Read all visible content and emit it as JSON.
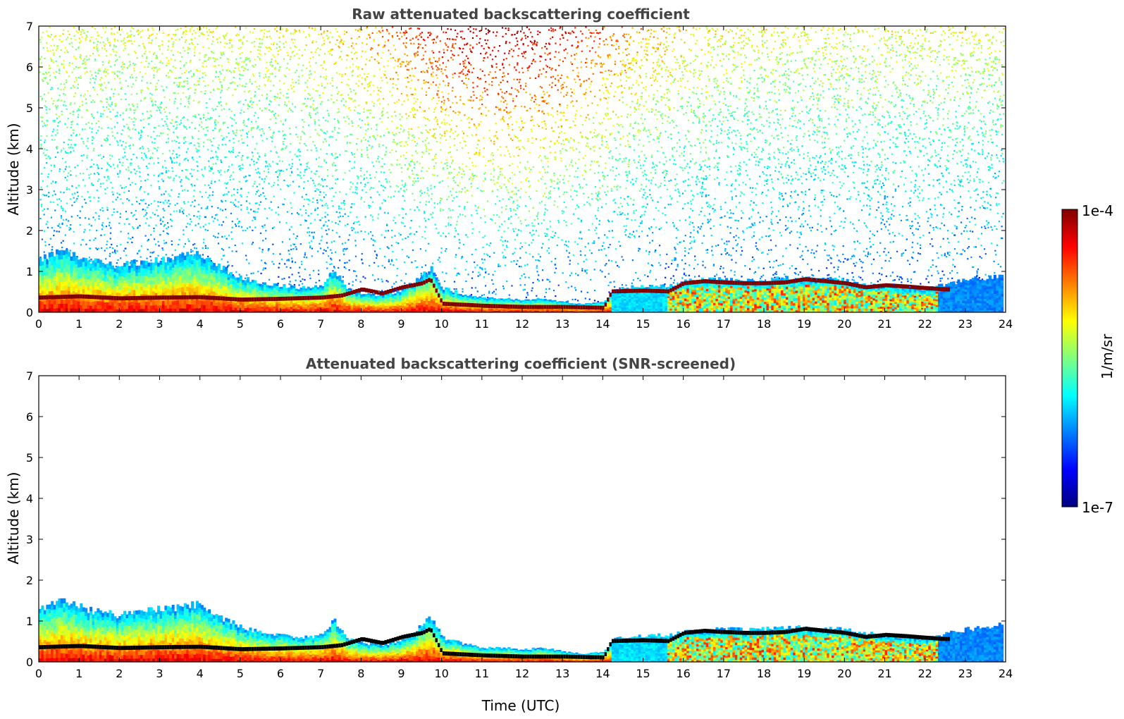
{
  "chart_data": [
    {
      "type": "heatmap",
      "title": "Raw attenuated backscattering coefficient",
      "xlabel": "",
      "ylabel": "Altitude (km)",
      "xlim": [
        0,
        24
      ],
      "ylim": [
        0,
        7
      ],
      "x_ticks": [
        "0",
        "1",
        "2",
        "3",
        "4",
        "5",
        "6",
        "7",
        "8",
        "9",
        "10",
        "11",
        "12",
        "13",
        "14",
        "15",
        "16",
        "17",
        "18",
        "19",
        "20",
        "21",
        "22",
        "23",
        "24"
      ],
      "y_ticks": [
        "0",
        "1",
        "2",
        "3",
        "4",
        "5",
        "6",
        "7"
      ],
      "screened": false,
      "boundary_layer_top_km": [
        [
          0,
          1.3
        ],
        [
          0.5,
          1.5
        ],
        [
          1,
          1.35
        ],
        [
          1.5,
          1.2
        ],
        [
          2,
          1.15
        ],
        [
          2.5,
          1.25
        ],
        [
          3,
          1.3
        ],
        [
          3.5,
          1.35
        ],
        [
          4,
          1.45
        ],
        [
          4.5,
          1.1
        ],
        [
          5,
          0.85
        ],
        [
          5.5,
          0.72
        ],
        [
          6,
          0.65
        ],
        [
          6.5,
          0.6
        ],
        [
          7,
          0.65
        ],
        [
          7.3,
          1.05
        ],
        [
          7.6,
          0.6
        ],
        [
          8,
          0.45
        ],
        [
          8.5,
          0.4
        ],
        [
          9,
          0.55
        ],
        [
          9.5,
          0.9
        ],
        [
          9.7,
          1.1
        ],
        [
          10,
          0.6
        ],
        [
          10.5,
          0.45
        ],
        [
          11,
          0.35
        ],
        [
          11.5,
          0.35
        ],
        [
          12,
          0.3
        ],
        [
          12.5,
          0.35
        ],
        [
          13,
          0.25
        ],
        [
          13.5,
          0.2
        ],
        [
          14,
          0.25
        ],
        [
          14.3,
          0.6
        ],
        [
          15,
          0.65
        ],
        [
          15.6,
          0.65
        ],
        [
          16,
          0.75
        ],
        [
          16.5,
          0.8
        ],
        [
          17,
          0.8
        ],
        [
          17.5,
          0.78
        ],
        [
          18,
          0.8
        ],
        [
          18.5,
          0.85
        ],
        [
          19,
          0.85
        ],
        [
          19.5,
          0.82
        ],
        [
          20,
          0.78
        ],
        [
          20.5,
          0.7
        ],
        [
          21,
          0.65
        ],
        [
          21.5,
          0.62
        ],
        [
          22,
          0.55
        ],
        [
          22.5,
          0.7
        ],
        [
          23,
          0.8
        ],
        [
          23.5,
          0.85
        ],
        [
          23.9,
          0.9
        ]
      ],
      "residual_layer_km": [
        [
          0,
          0.35
        ],
        [
          1,
          0.38
        ],
        [
          2,
          0.33
        ],
        [
          3,
          0.35
        ],
        [
          4,
          0.36
        ],
        [
          5,
          0.3
        ],
        [
          6,
          0.32
        ],
        [
          7,
          0.35
        ],
        [
          7.5,
          0.4
        ],
        [
          8,
          0.55
        ],
        [
          8.5,
          0.45
        ],
        [
          9,
          0.6
        ],
        [
          9.5,
          0.7
        ],
        [
          9.7,
          0.8
        ],
        [
          10,
          0.2
        ],
        [
          11,
          0.15
        ],
        [
          12,
          0.12
        ],
        [
          13,
          0.12
        ],
        [
          14,
          0.1
        ],
        [
          14.2,
          0.5
        ],
        [
          15,
          0.52
        ],
        [
          15.6,
          0.5
        ],
        [
          16,
          0.7
        ],
        [
          16.5,
          0.75
        ],
        [
          17,
          0.72
        ],
        [
          17.5,
          0.7
        ],
        [
          18,
          0.7
        ],
        [
          18.5,
          0.72
        ],
        [
          19,
          0.8
        ],
        [
          19.5,
          0.75
        ],
        [
          20,
          0.7
        ],
        [
          20.5,
          0.6
        ],
        [
          21,
          0.65
        ],
        [
          21.5,
          0.62
        ],
        [
          22,
          0.58
        ],
        [
          22.5,
          0.55
        ]
      ]
    },
    {
      "type": "heatmap",
      "title": "Attenuated backscattering coefficient (SNR-screened)",
      "xlabel": "Time (UTC)",
      "ylabel": "Altitude (km)",
      "xlim": [
        0,
        24
      ],
      "ylim": [
        0,
        7
      ],
      "x_ticks": [
        "0",
        "1",
        "2",
        "3",
        "4",
        "5",
        "6",
        "7",
        "8",
        "9",
        "10",
        "11",
        "12",
        "13",
        "14",
        "15",
        "16",
        "17",
        "18",
        "19",
        "20",
        "21",
        "22",
        "23",
        "24"
      ],
      "y_ticks": [
        "0",
        "1",
        "2",
        "3",
        "4",
        "5",
        "6",
        "7"
      ],
      "screened": true,
      "boundary_layer_top_km": [
        [
          0,
          1.3
        ],
        [
          0.5,
          1.5
        ],
        [
          1,
          1.35
        ],
        [
          1.5,
          1.2
        ],
        [
          2,
          1.15
        ],
        [
          2.5,
          1.25
        ],
        [
          3,
          1.3
        ],
        [
          3.5,
          1.35
        ],
        [
          4,
          1.45
        ],
        [
          4.5,
          1.1
        ],
        [
          5,
          0.85
        ],
        [
          5.5,
          0.72
        ],
        [
          6,
          0.65
        ],
        [
          6.5,
          0.6
        ],
        [
          7,
          0.65
        ],
        [
          7.3,
          1.05
        ],
        [
          7.6,
          0.6
        ],
        [
          8,
          0.45
        ],
        [
          8.5,
          0.4
        ],
        [
          9,
          0.55
        ],
        [
          9.5,
          0.9
        ],
        [
          9.7,
          1.1
        ],
        [
          10,
          0.6
        ],
        [
          10.5,
          0.45
        ],
        [
          11,
          0.35
        ],
        [
          11.5,
          0.35
        ],
        [
          12,
          0.3
        ],
        [
          12.5,
          0.35
        ],
        [
          13,
          0.25
        ],
        [
          13.5,
          0.2
        ],
        [
          14,
          0.25
        ],
        [
          14.3,
          0.6
        ],
        [
          15,
          0.65
        ],
        [
          15.6,
          0.65
        ],
        [
          16,
          0.75
        ],
        [
          16.5,
          0.8
        ],
        [
          17,
          0.8
        ],
        [
          17.5,
          0.78
        ],
        [
          18,
          0.8
        ],
        [
          18.5,
          0.85
        ],
        [
          19,
          0.85
        ],
        [
          19.5,
          0.82
        ],
        [
          20,
          0.78
        ],
        [
          20.5,
          0.7
        ],
        [
          21,
          0.65
        ],
        [
          21.5,
          0.62
        ],
        [
          22,
          0.55
        ],
        [
          22.5,
          0.7
        ],
        [
          23,
          0.8
        ],
        [
          23.5,
          0.85
        ],
        [
          23.9,
          0.9
        ]
      ],
      "residual_layer_km": [
        [
          0,
          0.35
        ],
        [
          1,
          0.38
        ],
        [
          2,
          0.33
        ],
        [
          3,
          0.35
        ],
        [
          4,
          0.36
        ],
        [
          5,
          0.3
        ],
        [
          6,
          0.32
        ],
        [
          7,
          0.35
        ],
        [
          7.5,
          0.4
        ],
        [
          8,
          0.55
        ],
        [
          8.5,
          0.45
        ],
        [
          9,
          0.6
        ],
        [
          9.5,
          0.7
        ],
        [
          9.7,
          0.8
        ],
        [
          10,
          0.2
        ],
        [
          11,
          0.15
        ],
        [
          12,
          0.12
        ],
        [
          13,
          0.12
        ],
        [
          14,
          0.1
        ],
        [
          14.2,
          0.5
        ],
        [
          15,
          0.52
        ],
        [
          15.6,
          0.5
        ],
        [
          16,
          0.7
        ],
        [
          16.5,
          0.75
        ],
        [
          17,
          0.72
        ],
        [
          17.5,
          0.7
        ],
        [
          18,
          0.7
        ],
        [
          18.5,
          0.72
        ],
        [
          19,
          0.8
        ],
        [
          19.5,
          0.75
        ],
        [
          20,
          0.7
        ],
        [
          20.5,
          0.6
        ],
        [
          21,
          0.65
        ],
        [
          21.5,
          0.62
        ],
        [
          22,
          0.58
        ],
        [
          22.5,
          0.55
        ]
      ]
    }
  ],
  "colorbar": {
    "label": "1/m/sr",
    "max_label": "1e-4",
    "min_label": "1e-7",
    "scale": "log",
    "range": [
      1e-07,
      0.0001
    ],
    "colormap": "jet",
    "colors": [
      "#00007f",
      "#0000ff",
      "#007fff",
      "#00ffff",
      "#7fff7f",
      "#ffff00",
      "#ff7f00",
      "#ff0000",
      "#7f0000"
    ]
  }
}
